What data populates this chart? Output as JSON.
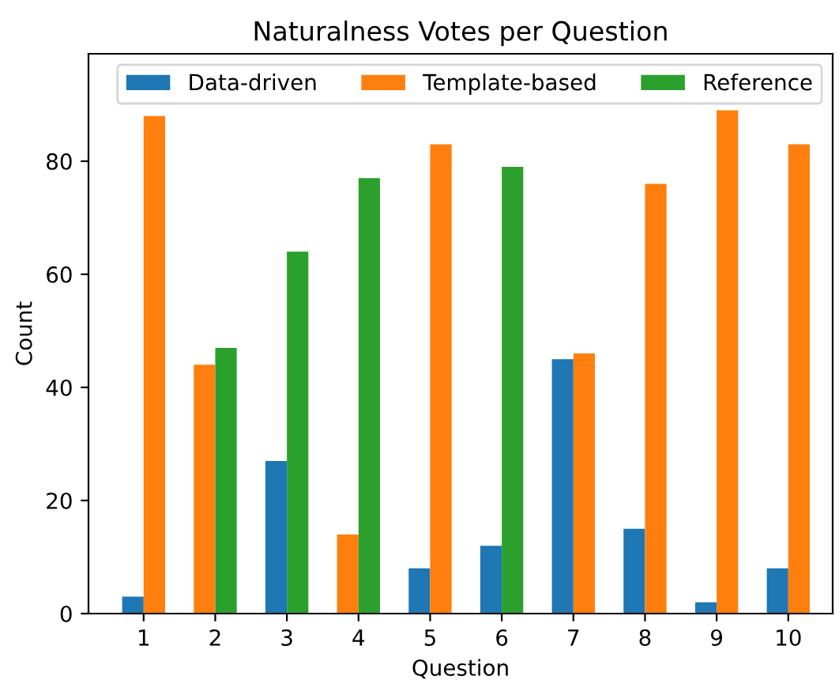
{
  "chart_data": {
    "type": "bar",
    "title": "Naturalness Votes per Question",
    "xlabel": "Question",
    "ylabel": "Count",
    "categories": [
      "1",
      "2",
      "3",
      "4",
      "5",
      "6",
      "7",
      "8",
      "9",
      "10"
    ],
    "series": [
      {
        "name": "Data-driven",
        "color": "#1f77b4",
        "values": [
          3,
          0,
          27,
          0,
          8,
          12,
          45,
          15,
          2,
          8
        ]
      },
      {
        "name": "Template-based",
        "color": "#ff7f0e",
        "values": [
          88,
          44,
          0,
          14,
          83,
          0,
          46,
          76,
          89,
          83
        ]
      },
      {
        "name": "Reference",
        "color": "#2ca02c",
        "values": [
          0,
          47,
          64,
          77,
          0,
          79,
          0,
          0,
          0,
          0
        ]
      }
    ],
    "ylim": [
      0,
      99
    ],
    "yticks": [
      0,
      20,
      40,
      60,
      80
    ],
    "grid": false,
    "legend": "top right"
  }
}
